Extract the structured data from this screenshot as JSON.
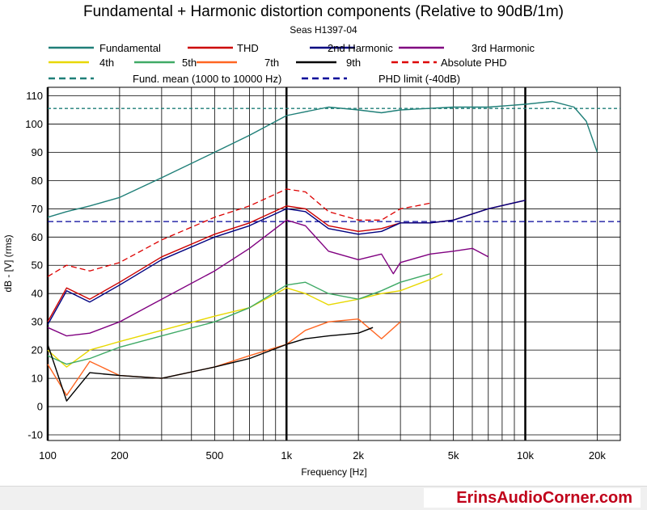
{
  "chart_data": {
    "type": "line",
    "title": "Fundamental + Harmonic distortion components (Relative to 90dB/1m)",
    "subtitle": "Seas H1397-04",
    "xlabel": "Frequency [Hz]",
    "ylabel": "dB - [V]  (rms)",
    "xscale": "log",
    "xlim": [
      100,
      25000
    ],
    "ylim": [
      -12,
      113
    ],
    "x_ticks": [
      100,
      200,
      500,
      1000,
      2000,
      5000,
      10000,
      20000
    ],
    "x_tick_labels": [
      "100",
      "200",
      "500",
      "1k",
      "2k",
      "5k",
      "10k",
      "20k"
    ],
    "y_ticks": [
      -10,
      0,
      10,
      20,
      30,
      40,
      50,
      60,
      70,
      80,
      90,
      100,
      110
    ],
    "grid": true,
    "legend_position": "top",
    "series": [
      {
        "name": "Fundamental",
        "color": "#1f7f78",
        "dash": "solid",
        "x": [
          100,
          120,
          150,
          200,
          300,
          500,
          700,
          1000,
          1500,
          2000,
          2500,
          3000,
          5000,
          7000,
          10000,
          13000,
          16000,
          18000,
          20000
        ],
        "y": [
          67,
          69,
          71,
          74,
          81,
          90,
          96,
          103,
          106,
          105,
          104,
          105,
          106,
          106,
          107,
          108,
          106,
          101,
          90
        ]
      },
      {
        "name": "THD",
        "color": "#cc0000",
        "dash": "solid",
        "x": [
          100,
          120,
          150,
          200,
          300,
          500,
          700,
          1000,
          1200,
          1500,
          2000,
          2500,
          3000,
          4000,
          5000,
          7000,
          10000
        ],
        "y": [
          30,
          42,
          38,
          44,
          53,
          61,
          65,
          71,
          70,
          64,
          62,
          63,
          65,
          65,
          66,
          70,
          73
        ]
      },
      {
        "name": "2nd Harmonic",
        "color": "#000080",
        "dash": "solid",
        "x": [
          100,
          120,
          150,
          200,
          300,
          500,
          700,
          1000,
          1200,
          1500,
          2000,
          2500,
          3000,
          4000,
          5000,
          7000,
          10000
        ],
        "y": [
          29,
          41,
          37,
          43,
          52,
          60,
          64,
          70,
          69,
          63,
          61,
          62,
          65,
          65,
          66,
          70,
          73
        ]
      },
      {
        "name": "3rd Harmonic",
        "color": "#800080",
        "dash": "solid",
        "x": [
          100,
          120,
          150,
          200,
          300,
          500,
          700,
          1000,
          1200,
          1500,
          2000,
          2500,
          2800,
          3000,
          4000,
          5000,
          6000,
          7000
        ],
        "y": [
          28,
          25,
          26,
          30,
          38,
          48,
          56,
          66,
          64,
          55,
          52,
          54,
          47,
          51,
          54,
          55,
          56,
          53
        ]
      },
      {
        "name": "4th",
        "color": "#e8d800",
        "dash": "solid",
        "x": [
          100,
          120,
          150,
          200,
          300,
          500,
          700,
          1000,
          1200,
          1500,
          2000,
          2500,
          3000,
          4000,
          4500
        ],
        "y": [
          20,
          14,
          20,
          23,
          27,
          32,
          35,
          42,
          40,
          36,
          38,
          40,
          41,
          45,
          47
        ]
      },
      {
        "name": "5th",
        "color": "#3faa66",
        "dash": "solid",
        "x": [
          100,
          120,
          150,
          200,
          300,
          500,
          700,
          1000,
          1200,
          1500,
          2000,
          2500,
          3000,
          4000
        ],
        "y": [
          18,
          15,
          17,
          21,
          25,
          30,
          35,
          43,
          44,
          40,
          38,
          41,
          44,
          47
        ]
      },
      {
        "name": "7th",
        "color": "#ff6622",
        "dash": "solid",
        "x": [
          100,
          120,
          150,
          200,
          300,
          500,
          700,
          1000,
          1200,
          1500,
          2000,
          2500,
          3000
        ],
        "y": [
          15,
          4,
          16,
          11,
          10,
          14,
          18,
          22,
          27,
          30,
          31,
          24,
          30
        ]
      },
      {
        "name": "9th",
        "color": "#000000",
        "dash": "solid",
        "x": [
          100,
          120,
          150,
          200,
          300,
          500,
          700,
          1000,
          1200,
          1500,
          2000,
          2300
        ],
        "y": [
          22,
          2,
          12,
          11,
          10,
          14,
          17,
          22,
          24,
          25,
          26,
          28
        ]
      },
      {
        "name": "Absolute PHD",
        "color": "#dd0000",
        "dash": "dashed",
        "x": [
          100,
          120,
          150,
          200,
          300,
          500,
          700,
          1000,
          1200,
          1500,
          2000,
          2500,
          3000,
          3500,
          4000
        ],
        "y": [
          46,
          50,
          48,
          51,
          59,
          67,
          71,
          77,
          76,
          69,
          66,
          66,
          70,
          71,
          72
        ]
      },
      {
        "name": "Fund. mean (1000 to 10000 Hz)",
        "color": "#1f7f78",
        "dash": "dashed",
        "x": [
          100,
          25000
        ],
        "y": [
          105.5,
          105.5
        ]
      },
      {
        "name": "PHD limit (-40dB)",
        "color": "#000099",
        "dash": "dashed",
        "x": [
          100,
          25000
        ],
        "y": [
          65.5,
          65.5
        ]
      }
    ]
  },
  "footer": {
    "brand": "ErinsAudioCorner.com"
  }
}
